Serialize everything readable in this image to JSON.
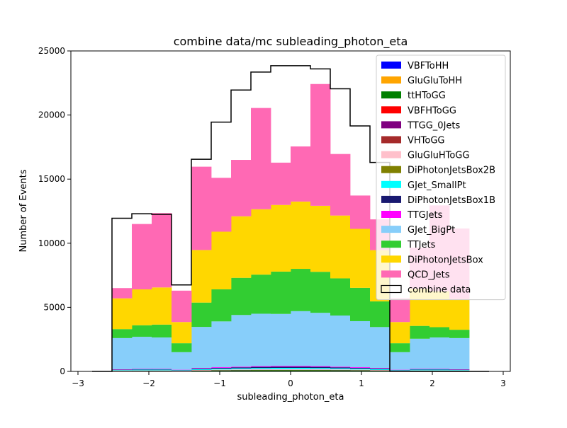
{
  "chart_data": {
    "type": "bar",
    "title": "combine data/mc subleading_photon_eta",
    "xlabel": "subleading_photon_eta",
    "ylabel": "Number of Events",
    "xlim": [
      -3.1,
      3.1
    ],
    "ylim": [
      0,
      25000
    ],
    "xticks": [
      -3,
      -2,
      -1,
      0,
      1,
      2,
      3
    ],
    "yticks": [
      0,
      5000,
      10000,
      15000,
      20000,
      25000
    ],
    "grid": false,
    "legend_position": "top-right",
    "bin_edges": [
      -2.8,
      -2.52,
      -2.24,
      -1.96,
      -1.68,
      -1.4,
      -1.12,
      -0.84,
      -0.56,
      -0.28,
      0.0,
      0.28,
      0.56,
      0.84,
      1.12,
      1.4,
      1.68,
      1.96,
      2.24,
      2.52,
      2.8
    ],
    "stacked_series": [
      {
        "name": "VBFToHH",
        "color": "#0000ff",
        "values": [
          0,
          0,
          0,
          0,
          0,
          0,
          0,
          0,
          0,
          0,
          0,
          0,
          0,
          0,
          0,
          0,
          0,
          0,
          0,
          0
        ]
      },
      {
        "name": "GluGluToHH",
        "color": "#ffa500",
        "values": [
          0,
          0,
          0,
          0,
          0,
          0,
          0,
          0,
          0,
          0,
          0,
          0,
          0,
          0,
          0,
          0,
          0,
          0,
          0,
          0
        ]
      },
      {
        "name": "ttHToGG",
        "color": "#008000",
        "values": [
          0,
          40,
          45,
          45,
          30,
          60,
          80,
          90,
          100,
          100,
          100,
          100,
          90,
          80,
          60,
          30,
          45,
          45,
          40,
          0
        ]
      },
      {
        "name": "VBFHToGG",
        "color": "#ff0000",
        "values": [
          0,
          5,
          5,
          5,
          5,
          10,
          10,
          10,
          10,
          10,
          10,
          10,
          10,
          10,
          10,
          5,
          5,
          5,
          5,
          0
        ]
      },
      {
        "name": "TTGG_0Jets",
        "color": "#800080",
        "values": [
          0,
          5,
          5,
          5,
          5,
          5,
          10,
          10,
          10,
          10,
          10,
          10,
          10,
          10,
          5,
          5,
          5,
          5,
          5,
          0
        ]
      },
      {
        "name": "VHToGG",
        "color": "#a52a2a",
        "values": [
          0,
          5,
          5,
          5,
          5,
          5,
          5,
          5,
          5,
          5,
          5,
          5,
          5,
          5,
          5,
          5,
          5,
          5,
          5,
          0
        ]
      },
      {
        "name": "GluGluHToGG",
        "color": "#ffc0cb",
        "values": [
          0,
          20,
          20,
          20,
          15,
          30,
          40,
          45,
          50,
          50,
          50,
          50,
          45,
          40,
          30,
          15,
          20,
          20,
          20,
          0
        ]
      },
      {
        "name": "DiPhotonJetsBox2B",
        "color": "#808000",
        "values": [
          0,
          0,
          0,
          0,
          0,
          0,
          0,
          0,
          0,
          0,
          0,
          0,
          0,
          0,
          0,
          0,
          0,
          0,
          0,
          0
        ]
      },
      {
        "name": "GJet_SmallPt",
        "color": "#00ffff",
        "values": [
          0,
          40,
          60,
          60,
          30,
          60,
          70,
          80,
          90,
          100,
          100,
          90,
          80,
          70,
          60,
          30,
          60,
          60,
          40,
          0
        ]
      },
      {
        "name": "DiPhotonJetsBox1B",
        "color": "#191970",
        "values": [
          0,
          30,
          40,
          40,
          20,
          60,
          70,
          80,
          90,
          100,
          100,
          90,
          80,
          70,
          60,
          20,
          40,
          40,
          30,
          0
        ]
      },
      {
        "name": "TTGJets",
        "color": "#ff00ff",
        "values": [
          0,
          25,
          30,
          30,
          20,
          40,
          45,
          50,
          55,
          60,
          60,
          55,
          50,
          45,
          40,
          20,
          30,
          30,
          25,
          0
        ]
      },
      {
        "name": "GJet_BigPt",
        "color": "#87cefa",
        "values": [
          0,
          2430,
          2490,
          2440,
          1370,
          3200,
          3570,
          4030,
          4090,
          4050,
          4265,
          4160,
          3990,
          3590,
          3190,
          1370,
          2340,
          2440,
          2430,
          0
        ]
      },
      {
        "name": "TTJets",
        "color": "#32cd32",
        "values": [
          0,
          700,
          900,
          1000,
          700,
          1900,
          2500,
          2900,
          3050,
          3300,
          3300,
          3200,
          2900,
          2600,
          2000,
          700,
          1000,
          800,
          650,
          0
        ]
      },
      {
        "name": "DiPhotonJetsBox",
        "color": "#ffd700",
        "values": [
          0,
          2400,
          2800,
          2900,
          1650,
          4100,
          4500,
          4800,
          5100,
          5200,
          5250,
          5150,
          4900,
          4600,
          4000,
          1650,
          2900,
          2800,
          2400,
          0
        ]
      },
      {
        "name": "QCD_Jets",
        "color": "#ff69b4",
        "values": [
          0,
          800,
          5100,
          5800,
          2450,
          6500,
          4200,
          4400,
          7900,
          3300,
          4300,
          9500,
          4800,
          2600,
          2400,
          1850,
          3200,
          6700,
          5500,
          0
        ]
      }
    ],
    "data_series": {
      "name": "combine data",
      "color": "#000000",
      "values": [
        0,
        11950,
        12300,
        12250,
        6750,
        16550,
        19450,
        21950,
        23350,
        23850,
        23850,
        23600,
        22050,
        19150,
        16300,
        0,
        0,
        0,
        0,
        0
      ]
    }
  }
}
